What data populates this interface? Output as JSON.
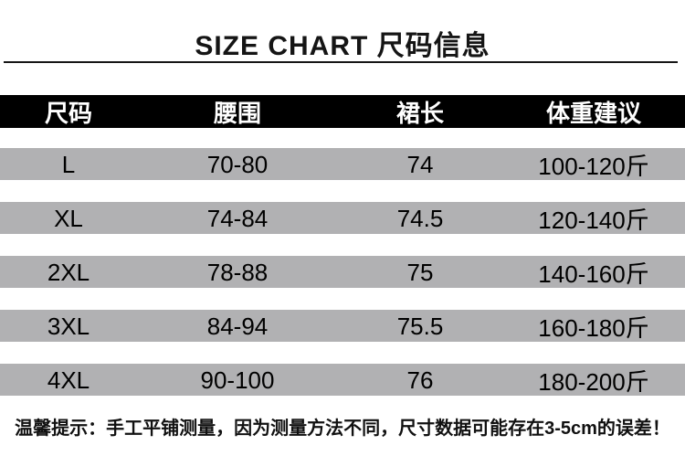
{
  "page": {
    "title": "SIZE CHART 尺码信息",
    "note": "温馨提示：手工平铺测量，因为测量方法不同，尺寸数据可能存在3-5cm的误差！"
  },
  "table": {
    "headers": [
      "尺码",
      "腰围",
      "裙长",
      "体重建议"
    ],
    "rows": [
      {
        "size": "L",
        "waist": "70-80",
        "length": "74",
        "weight": "100-120斤"
      },
      {
        "size": "XL",
        "waist": "74-84",
        "length": "74.5",
        "weight": "120-140斤"
      },
      {
        "size": "2XL",
        "waist": "78-88",
        "length": "75",
        "weight": "140-160斤"
      },
      {
        "size": "3XL",
        "waist": "84-94",
        "length": "75.5",
        "weight": "160-180斤"
      },
      {
        "size": "4XL",
        "waist": "90-100",
        "length": "76",
        "weight": "180-200斤"
      }
    ]
  },
  "colors": {
    "header_bg": "#000000",
    "header_text": "#ffffff",
    "row_band": "#b1b1b3",
    "title_text": "#151515",
    "body_text": "#000000"
  },
  "chart_data": {
    "type": "table",
    "title": "SIZE CHART 尺码信息",
    "columns": [
      "尺码",
      "腰围",
      "裙长",
      "体重建议"
    ],
    "rows": [
      [
        "L",
        "70-80",
        "74",
        "100-120斤"
      ],
      [
        "XL",
        "74-84",
        "74.5",
        "120-140斤"
      ],
      [
        "2XL",
        "78-88",
        "75",
        "140-160斤"
      ],
      [
        "3XL",
        "84-94",
        "75.5",
        "160-180斤"
      ],
      [
        "4XL",
        "90-100",
        "76",
        "180-200斤"
      ]
    ],
    "footnote": "温馨提示：手工平铺测量，因为测量方法不同，尺寸数据可能存在3-5cm的误差！",
    "layout": {
      "header_style": "black-bar",
      "row_style": "gray-bands-alternating-with-white-gaps",
      "grid": "off"
    }
  }
}
